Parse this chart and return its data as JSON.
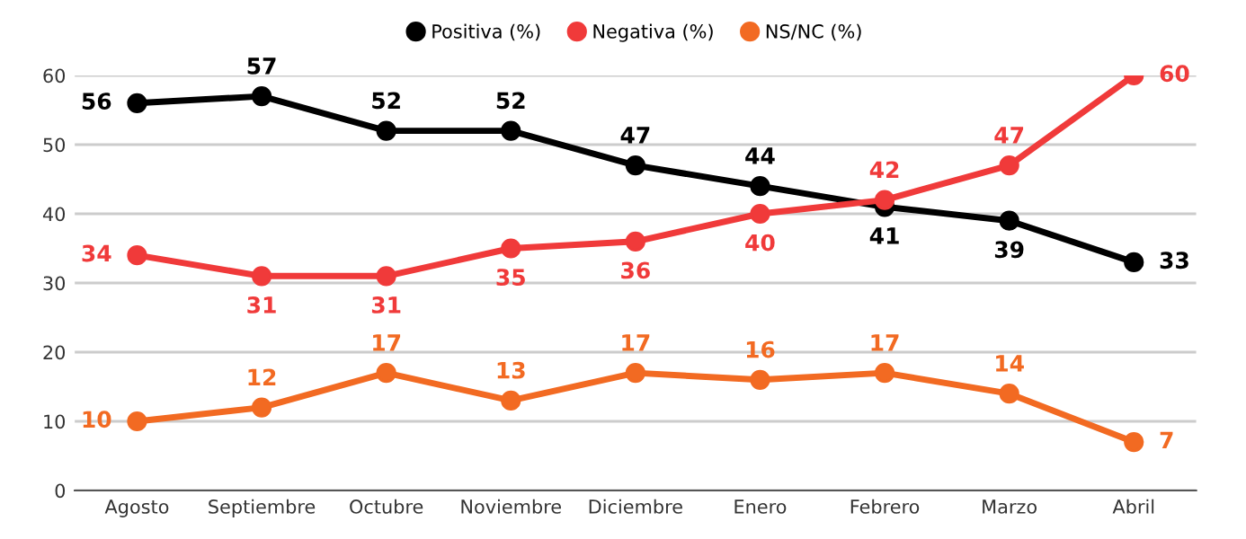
{
  "chart_data": {
    "type": "line",
    "categories": [
      "Agosto",
      "Septiembre",
      "Octubre",
      "Noviembre",
      "Diciembre",
      "Enero",
      "Febrero",
      "Marzo",
      "Abril"
    ],
    "series": [
      {
        "name": "Positiva (%)",
        "color": "#000000",
        "values": [
          56,
          57,
          52,
          52,
          47,
          44,
          41,
          39,
          33
        ]
      },
      {
        "name": "Negativa (%)",
        "color": "#f03a3a",
        "values": [
          34,
          31,
          31,
          35,
          36,
          40,
          42,
          47,
          60
        ]
      },
      {
        "name": "NS/NC (%)",
        "color": "#f26a22",
        "values": [
          10,
          12,
          17,
          13,
          17,
          16,
          17,
          14,
          7
        ]
      }
    ],
    "ylim": [
      0,
      60
    ],
    "yticks": [
      0,
      10,
      20,
      30,
      40,
      50,
      60
    ],
    "grid": "y",
    "legend": "top",
    "marker": "circle",
    "line_style": "solid",
    "data_labels": true
  }
}
